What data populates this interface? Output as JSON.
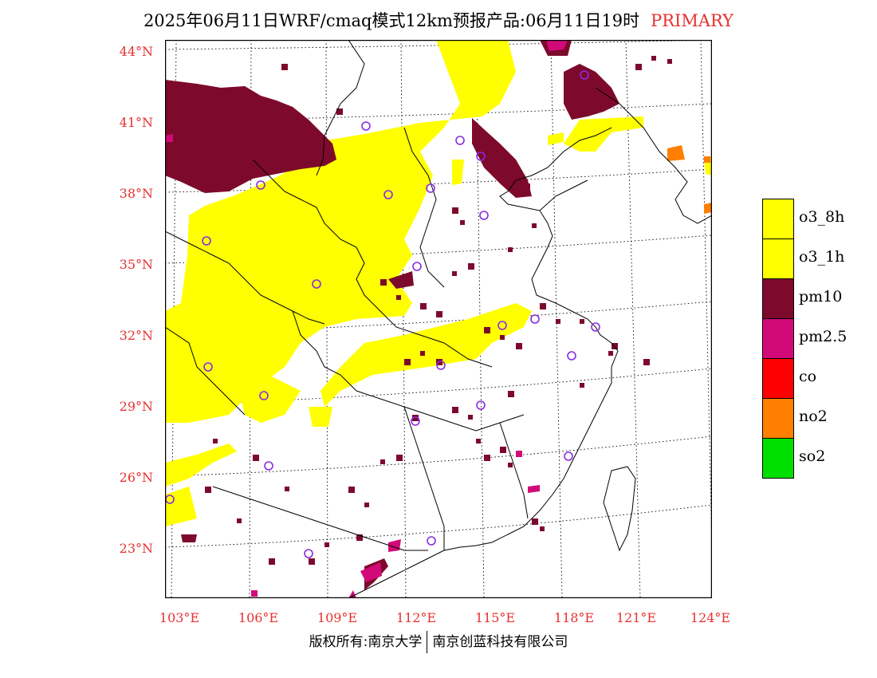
{
  "title": {
    "main": "2025年06月11日WRF/cmaq模式12km预报产品:06月11日19时",
    "tag": "PRIMARY"
  },
  "axes": {
    "lat_labels": [
      "44°N",
      "41°N",
      "38°N",
      "35°N",
      "32°N",
      "29°N",
      "26°N",
      "23°N"
    ],
    "lon_labels": [
      "103°E",
      "106°E",
      "109°E",
      "112°E",
      "115°E",
      "118°E",
      "121°E",
      "124°E"
    ]
  },
  "legend": [
    {
      "label": "o3_8h",
      "color": "#ffff00"
    },
    {
      "label": "o3_1h",
      "color": "#ffff00"
    },
    {
      "label": "pm10",
      "color": "#7d0a2c"
    },
    {
      "label": "pm2.5",
      "color": "#d20a78"
    },
    {
      "label": "co",
      "color": "#ff0000"
    },
    {
      "label": "no2",
      "color": "#ff7f00"
    },
    {
      "label": "so2",
      "color": "#00e000"
    }
  ],
  "footer": {
    "left": "版权所有:南京大学",
    "right": "南京创蓝科技有限公司"
  },
  "colors": {
    "axis_label": "#e83030",
    "o3": "#ffff00",
    "pm10": "#7d0a2c",
    "pm25": "#d20a78",
    "no2": "#ff7f00",
    "station": "#8a2be2"
  }
}
